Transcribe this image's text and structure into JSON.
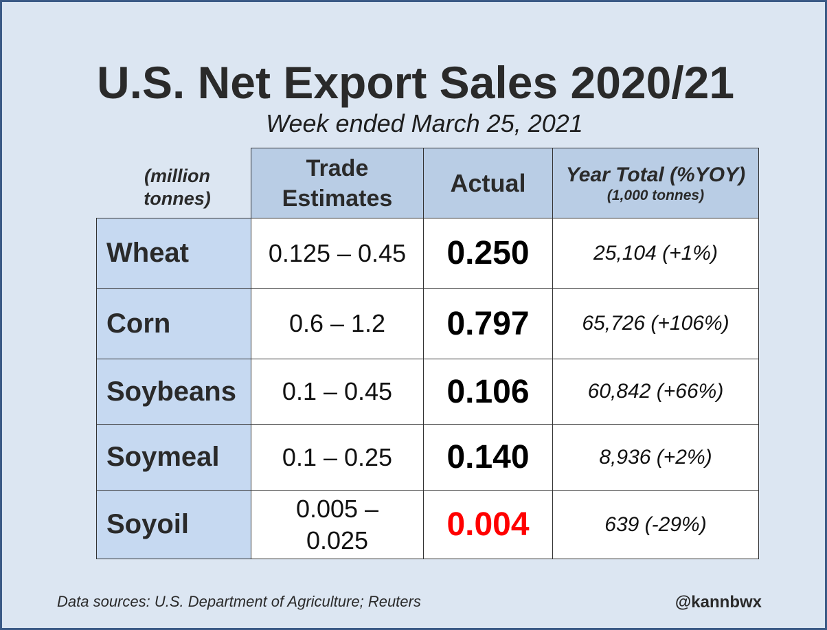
{
  "title": "U.S. Net Export Sales 2020/21",
  "subtitle": "Week ended March 25, 2021",
  "units_label": "(million tonnes)",
  "headers": {
    "trade_estimates": "Trade Estimates",
    "actual": "Actual",
    "year_total": "Year Total (%YOY)",
    "year_total_units": "(1,000 tonnes)"
  },
  "rows": [
    {
      "commodity": "Wheat",
      "trade_estimates": "0.125 – 0.45",
      "actual": "0.250",
      "year_total": "25,104 (+1%)"
    },
    {
      "commodity": "Corn",
      "trade_estimates": "0.6 – 1.2",
      "actual": "0.797",
      "year_total": "65,726 (+106%)"
    },
    {
      "commodity": "Soybeans",
      "trade_estimates": "0.1 – 0.45",
      "actual": "0.106",
      "year_total": "60,842 (+66%)"
    },
    {
      "commodity": "Soymeal",
      "trade_estimates": "0.1 – 0.25",
      "actual": "0.140",
      "year_total": "8,936 (+2%)"
    },
    {
      "commodity": "Soyoil",
      "trade_estimates": "0.005 – 0.025",
      "actual": "0.004",
      "year_total": "639 (-29%)"
    }
  ],
  "highlight_color": "#ff0000",
  "source": "Data sources: U.S. Department of Agriculture; Reuters",
  "handle": "@kannbwx"
}
